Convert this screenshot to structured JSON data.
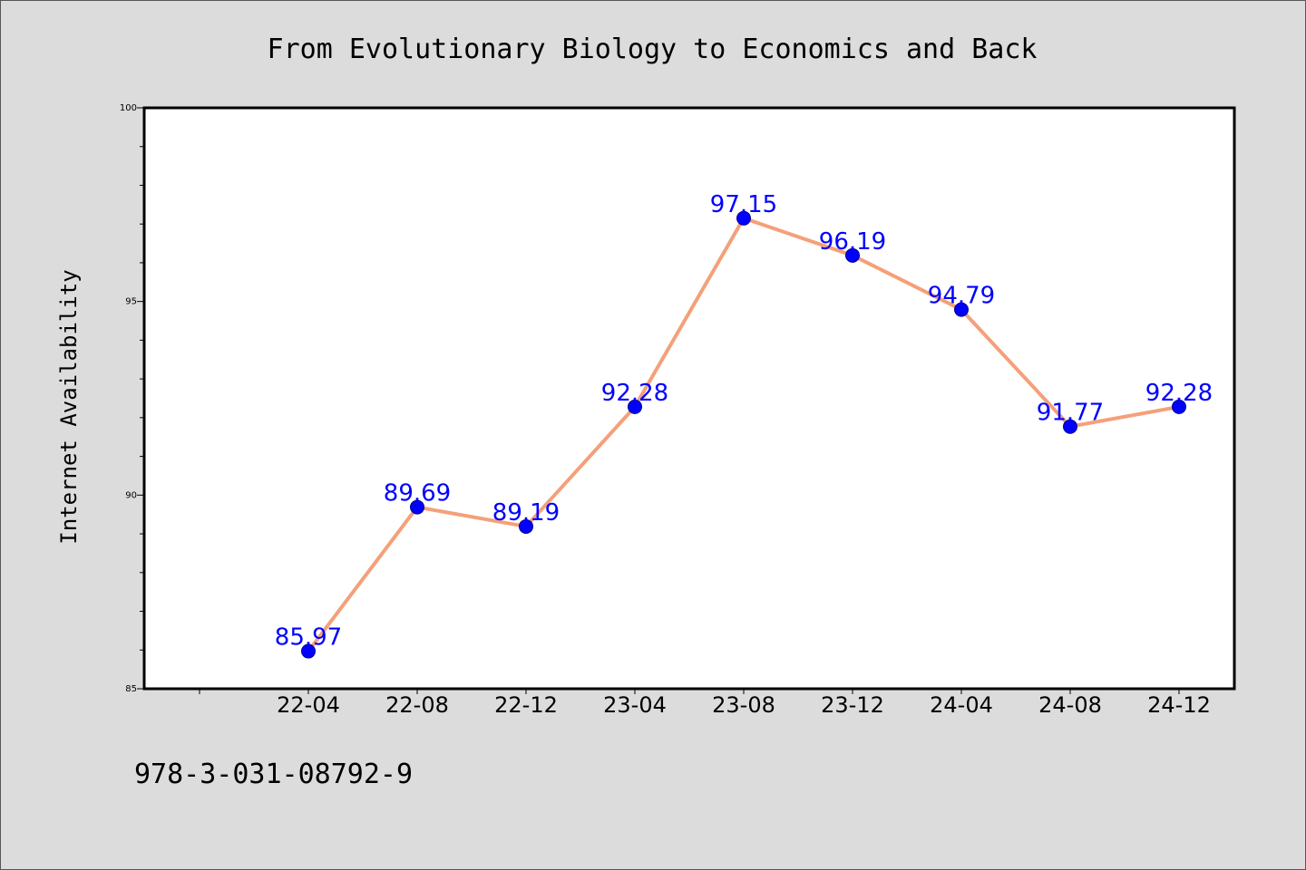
{
  "chart_data": {
    "type": "line",
    "title": "From Evolutionary Biology to Economics and Back",
    "xlabel": "",
    "ylabel": "Internet Availability",
    "categories": [
      "22-04",
      "22-08",
      "22-12",
      "23-04",
      "23-08",
      "23-12",
      "24-04",
      "24-08",
      "24-12"
    ],
    "series": [
      {
        "values": [
          85.97,
          89.69,
          89.19,
          92.28,
          97.15,
          96.19,
          94.79,
          91.77,
          92.28
        ],
        "line_color": "#f4a07a",
        "marker_color": "#0000ff",
        "label_color": "#0000ff"
      }
    ],
    "ylim": [
      85,
      100
    ],
    "yticks": [
      85,
      90,
      95,
      100
    ],
    "grid": false,
    "data_labels": true
  },
  "footer": {
    "isbn": "978-3-031-08792-9"
  },
  "colors": {
    "background": "#dcdcdc",
    "plot_background": "#ffffff",
    "axis": "#000000"
  }
}
